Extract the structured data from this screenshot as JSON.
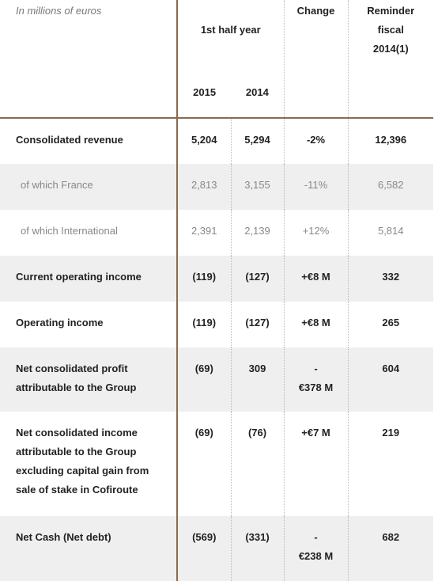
{
  "header": {
    "note": "In millions of euros",
    "group": "1st half year",
    "years": [
      "2015",
      "2014"
    ],
    "change": "Change",
    "reminder": "Reminder\nfiscal\n2014(1)"
  },
  "table": {
    "rows": [
      {
        "label": "Consolidated revenue",
        "values": [
          "5,204",
          "5,294",
          "-2%",
          "12,396"
        ]
      },
      {
        "label": "of which France",
        "values": [
          "2,813",
          "3,155",
          "-11%",
          "6,582"
        ]
      },
      {
        "label": "of which International",
        "values": [
          "2,391",
          "2,139",
          "+12%",
          "5,814"
        ]
      },
      {
        "label": "Current operating income",
        "values": [
          "(119)",
          "(127)",
          "+€8 M",
          "332"
        ]
      },
      {
        "label": "Operating income",
        "values": [
          "(119)",
          "(127)",
          "+€8 M",
          "265"
        ]
      },
      {
        "label": "Net consolidated profit attributable to the Group",
        "values": [
          "(69)",
          "309",
          "-\n€378 M",
          "604"
        ]
      },
      {
        "label": "Net consolidated income attributable to the Group excluding capital gain from sale of stake in Cofiroute",
        "values": [
          "(69)",
          "(76)",
          "+€7 M",
          "219"
        ]
      },
      {
        "label": "Net Cash (Net debt)",
        "values": [
          "(569)",
          "(331)",
          "-\n€238 M",
          "682"
        ]
      }
    ]
  }
}
